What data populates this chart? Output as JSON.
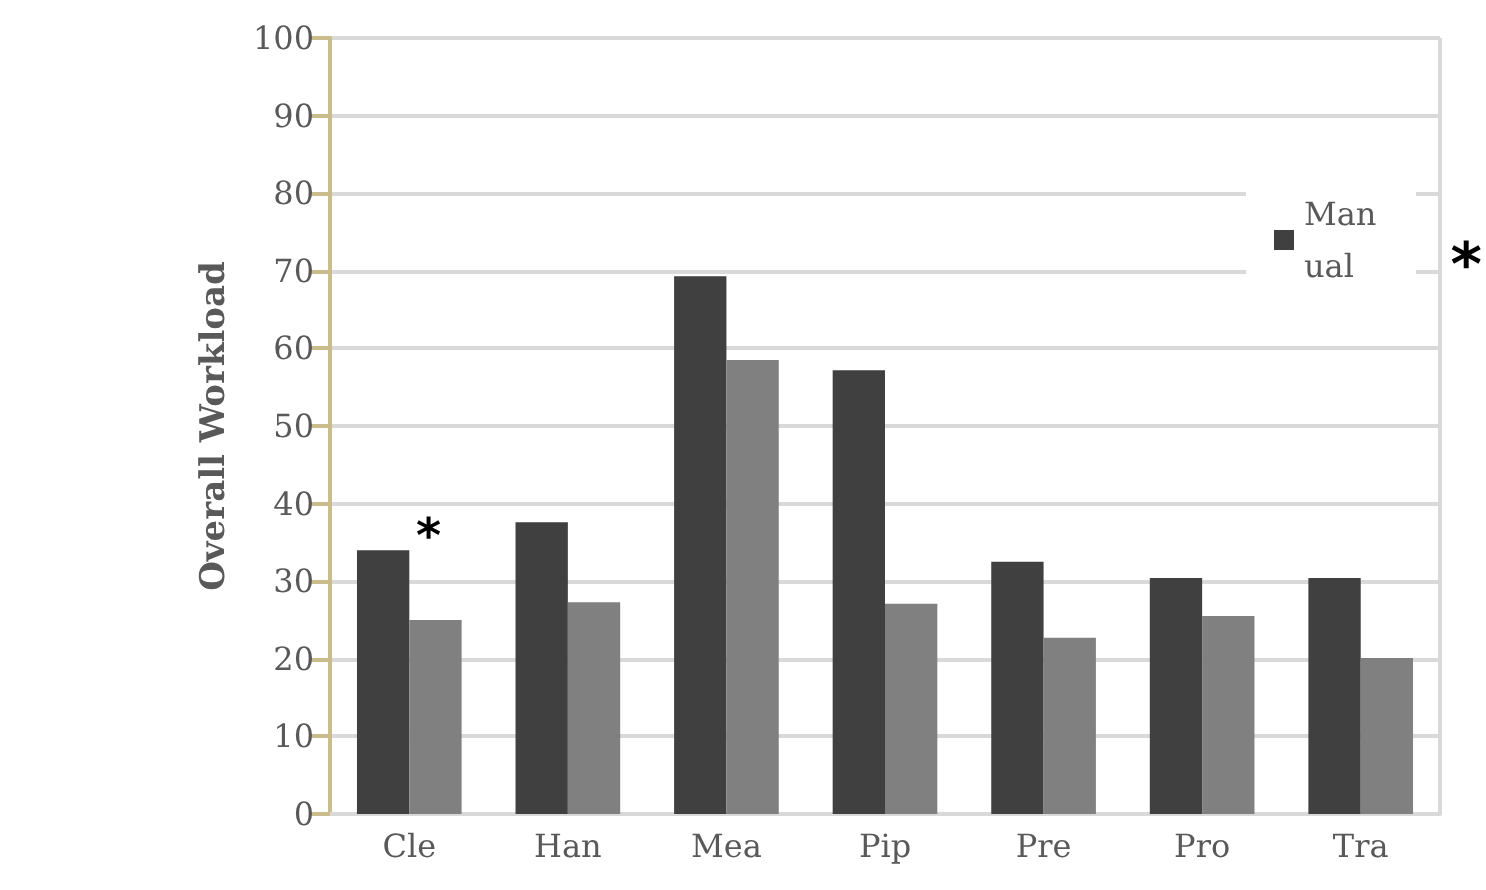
{
  "chart_data": {
    "type": "bar",
    "ylabel": "Overall Workload",
    "categories": [
      "Cle",
      "Han",
      "Mea",
      "Pip",
      "Pre",
      "Pro",
      "Tra"
    ],
    "series": [
      {
        "name": "Manual",
        "color": "#404040",
        "values": [
          34.0,
          37.6,
          69.3,
          57.2,
          32.5,
          30.4,
          30.4
        ]
      },
      {
        "color": "#808080",
        "values": [
          25.0,
          27.3,
          58.5,
          27.1,
          22.7,
          25.5,
          20.1
        ]
      }
    ],
    "ylim": [
      0,
      100
    ],
    "yticks": [
      0,
      10,
      20,
      30,
      40,
      50,
      60,
      70,
      80,
      90,
      100
    ],
    "grid": "y",
    "legend": "top right",
    "annotations": [
      "*",
      "*"
    ]
  }
}
